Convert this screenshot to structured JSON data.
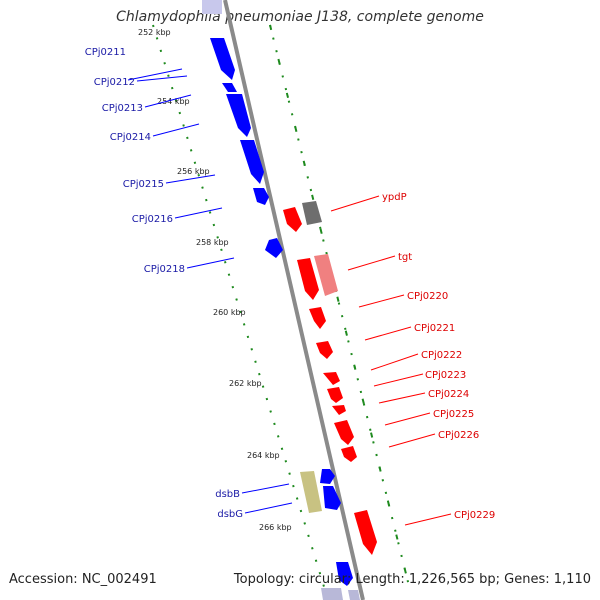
{
  "title": "Chlamydophila pneumoniae J138, complete genome",
  "footer": {
    "accession": "Accession: NC_002491",
    "stats": "Topology: circular; Length: 1,226,565 bp; Genes: 1,110"
  },
  "colors": {
    "plus_strand": "#0000ff",
    "minus_strand": "#ff0000",
    "plus_label": "#1a1aa6",
    "minus_label": "#dd0000",
    "backbone": "#8a8a8a",
    "tick_dots": "#1e8a1e",
    "gray_gene": "#6e6e6e",
    "pink_gene": "#f08080",
    "olive_gene": "#c8c282"
  },
  "ruler": [
    {
      "label": "252 kbp"
    },
    {
      "label": "254 kbp"
    },
    {
      "label": "256 kbp"
    },
    {
      "label": "258 kbp"
    },
    {
      "label": "260 kbp"
    },
    {
      "label": "262 kbp"
    },
    {
      "label": "264 kbp"
    },
    {
      "label": "266 kbp"
    }
  ],
  "plus_genes": [
    {
      "label": "CPj0211"
    },
    {
      "label": "CPj0212"
    },
    {
      "label": "CPj0213"
    },
    {
      "label": "CPj0214"
    },
    {
      "label": "CPj0215"
    },
    {
      "label": "CPj0216"
    },
    {
      "label": "CPj0218"
    },
    {
      "label": "dsbB"
    },
    {
      "label": "dsbG"
    }
  ],
  "minus_genes": [
    {
      "label": "ypdP"
    },
    {
      "label": "tgt"
    },
    {
      "label": "CPj0220"
    },
    {
      "label": "CPj0221"
    },
    {
      "label": "CPj0222"
    },
    {
      "label": "CPj0223"
    },
    {
      "label": "CPj0224"
    },
    {
      "label": "CPj0225"
    },
    {
      "label": "CPj0226"
    },
    {
      "label": "CPj0229"
    }
  ]
}
